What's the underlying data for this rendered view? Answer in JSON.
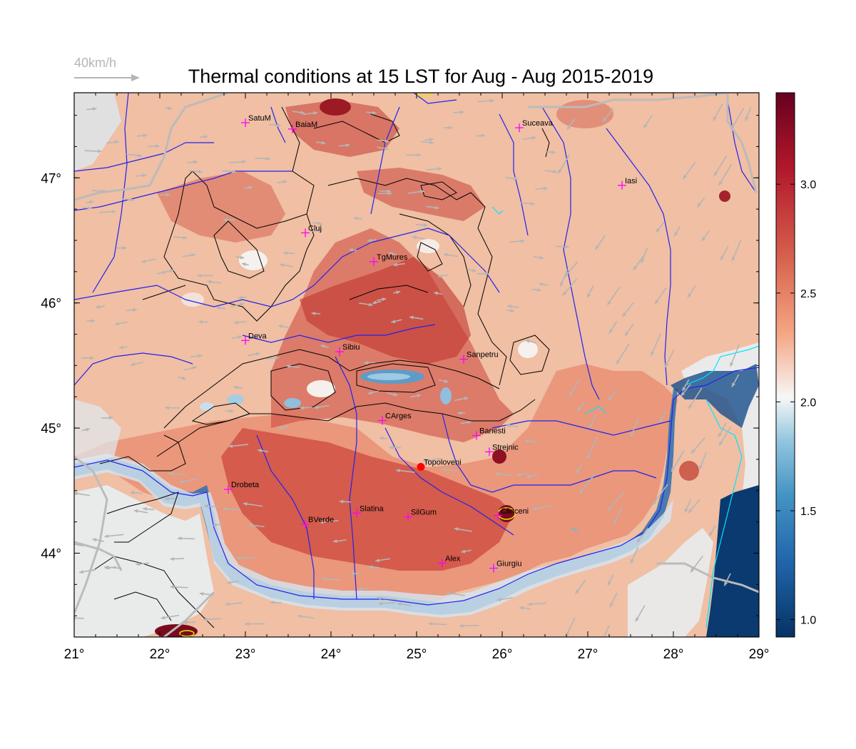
{
  "title": "Thermal conditions at 15 LST for Aug - Aug  2015-2019",
  "wind_key": {
    "label": "40km/h",
    "color": "#b5b5b5"
  },
  "axes": {
    "x_ticks": [
      "21°",
      "22°",
      "23°",
      "24°",
      "25°",
      "26°",
      "27°",
      "28°",
      "29°"
    ],
    "y_ticks": [
      "44°",
      "45°",
      "46°",
      "47°"
    ],
    "lon_range": [
      21,
      29
    ],
    "lat_range": [
      43.33,
      47.68
    ]
  },
  "colorbar": {
    "ticks": [
      "1.0",
      "1.5",
      "2.0",
      "2.5",
      "3.0"
    ],
    "range": [
      0.92,
      3.42
    ],
    "colors": [
      "#063264",
      "#2166ac",
      "#4393c3",
      "#92c5de",
      "#f7f7f7",
      "#f4a582",
      "#d6604d",
      "#b2182b",
      "#67001f"
    ]
  },
  "colors": {
    "rivers": "#2222ee",
    "borders": "#bbbbbb",
    "contours": "#000000",
    "city_marker": "#ff00ff",
    "highlight": "#ff0000",
    "coast": "#00e5ff"
  },
  "cities": [
    {
      "name": "SatuM",
      "lon": 23.0,
      "lat": 47.44
    },
    {
      "name": "BaiaM",
      "lon": 23.55,
      "lat": 47.39
    },
    {
      "name": "Suceava",
      "lon": 26.2,
      "lat": 47.4
    },
    {
      "name": "Iasi",
      "lon": 27.4,
      "lat": 46.94
    },
    {
      "name": "Cluj",
      "lon": 23.7,
      "lat": 46.56
    },
    {
      "name": "TgMures",
      "lon": 24.5,
      "lat": 46.33
    },
    {
      "name": "Deva",
      "lon": 23.0,
      "lat": 45.7
    },
    {
      "name": "Sibiu",
      "lon": 24.1,
      "lat": 45.61
    },
    {
      "name": "Sanpetru",
      "lon": 25.55,
      "lat": 45.55
    },
    {
      "name": "CArges",
      "lon": 24.6,
      "lat": 45.06
    },
    {
      "name": "Banesti",
      "lon": 25.7,
      "lat": 44.94
    },
    {
      "name": "Strejnic",
      "lon": 25.85,
      "lat": 44.81
    },
    {
      "name": "Topoloveni",
      "lon": 25.05,
      "lat": 44.69,
      "highlight": true
    },
    {
      "name": "Drobeta",
      "lon": 22.8,
      "lat": 44.51
    },
    {
      "name": "Slatina",
      "lon": 24.3,
      "lat": 44.32
    },
    {
      "name": "SilGum",
      "lon": 24.9,
      "lat": 44.29
    },
    {
      "name": "Clinceni",
      "lon": 25.95,
      "lat": 44.3
    },
    {
      "name": "BVerde",
      "lon": 23.7,
      "lat": 44.23
    },
    {
      "name": "Alex",
      "lon": 25.3,
      "lat": 43.92
    },
    {
      "name": "Giurgiu",
      "lon": 25.9,
      "lat": 43.88
    }
  ]
}
